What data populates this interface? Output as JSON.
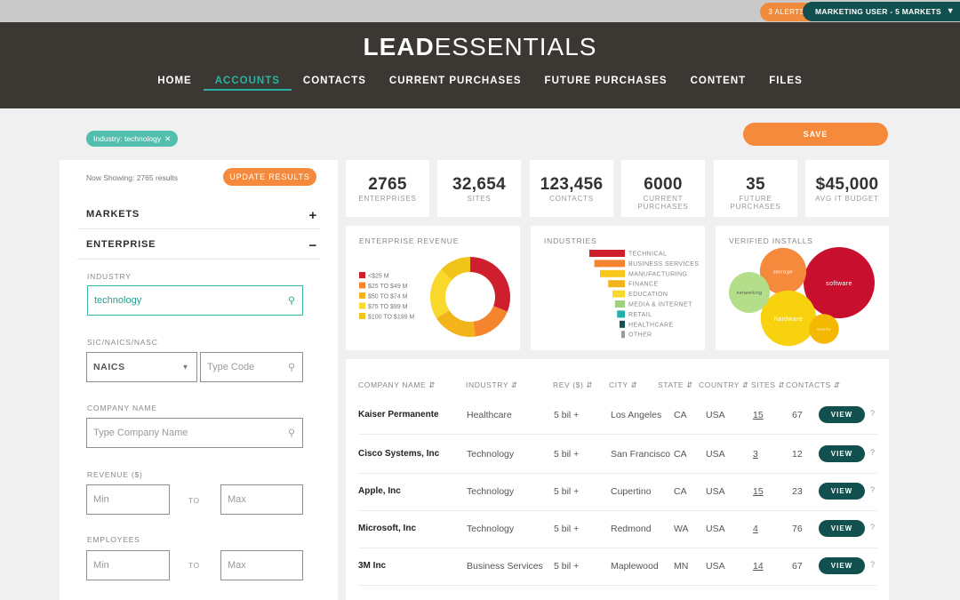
{
  "topbar": {
    "alerts": "3 ALERTS",
    "user": "MARKETING USER - 5 MARKETS"
  },
  "brand": {
    "bold": "LEAD",
    "light": "ESSENTIALS"
  },
  "nav": [
    "HOME",
    "ACCOUNTS",
    "CONTACTS",
    "CURRENT PURCHASES",
    "FUTURE PURCHASES",
    "CONTENT",
    "FILES"
  ],
  "filter_chip": "Industry: technology",
  "save_label": "SAVE",
  "left": {
    "now_showing": "Now Showing: 2765 results",
    "update_label": "UPDATE RESULTS",
    "markets_label": "MARKETS",
    "enterprise_label": "ENTERPRISE",
    "industry_label": "INDUSTRY",
    "industry_value": "technology",
    "sic_label": "SIC/NAICS/NASC",
    "sic_select": "NAICS",
    "type_code_placeholder": "Type Code",
    "company_label": "COMPANY NAME",
    "company_placeholder": "Type Company Name",
    "revenue_label": "REVENUE ($)",
    "employees_label": "EMPLOYEES",
    "min_placeholder": "Min",
    "max_placeholder": "Max",
    "to_label": "TO"
  },
  "stats": [
    {
      "num": "2765",
      "lbl1": "ENTERPRISES",
      "lbl2": ""
    },
    {
      "num": "32,654",
      "lbl1": "SITES",
      "lbl2": ""
    },
    {
      "num": "123,456",
      "lbl1": "CONTACTS",
      "lbl2": ""
    },
    {
      "num": "6000",
      "lbl1": "CURRENT",
      "lbl2": "PURCHASES"
    },
    {
      "num": "35",
      "lbl1": "FUTURE",
      "lbl2": "PURCHASES"
    },
    {
      "num": "$45,000",
      "lbl1": "AVG IT BUDGET",
      "lbl2": ""
    }
  ],
  "charts": {
    "revenue_title": "ENTERPRISE REVENUE",
    "industries_title": "INDUSTRIES",
    "installs_title": "VERIFIED INSTALLS"
  },
  "chart_data": [
    {
      "type": "pie",
      "title": "ENTERPRISE REVENUE",
      "categories": [
        "<$25 M",
        "$25 TO $49 M",
        "$50 TO $74 M",
        "$75 TO $99 M",
        "$100 TO $199 M"
      ],
      "values": [
        31,
        17,
        18,
        21,
        13
      ],
      "colors": [
        "#cf1f2e",
        "#f5842f",
        "#f2b41a",
        "#f8d82a",
        "#f0c419"
      ],
      "legend": "left"
    },
    {
      "type": "bar",
      "title": "INDUSTRIES",
      "categories": [
        "TECHNICAL",
        "BUSINESS SERVICES",
        "MANUFACTURING",
        "FINANCE",
        "EDUCATION",
        "MEDIA & INTERNET",
        "RETAIL",
        "HEALTHCARE",
        "OTHER"
      ],
      "values": [
        100,
        86,
        70,
        47,
        35,
        28,
        22,
        15,
        10
      ],
      "colors": [
        "#cf1f2e",
        "#f5842f",
        "#f8c71c",
        "#f2b41a",
        "#f8d82a",
        "#9ed180",
        "#24b0a6",
        "#12504f",
        "#9a9a9a"
      ]
    },
    {
      "type": "scatter",
      "title": "VERIFIED INSTALLS",
      "categories": [
        "software",
        "storage",
        "hardware",
        "networking",
        "security"
      ],
      "values": [
        100,
        35,
        55,
        25,
        10
      ],
      "colors": [
        "#c8102e",
        "#f58a3d",
        "#f8d20e",
        "#b5de8b",
        "#f5b800"
      ]
    }
  ],
  "table": {
    "headers": [
      "COMPANY NAME ⇵",
      "INDUSTRY ⇵",
      "REV ($) ⇵",
      "CITY ⇵",
      "STATE ⇵",
      "COUNTRY ⇵",
      "SITES ⇵",
      "CONTACTS ⇵"
    ],
    "view_label": "VIEW",
    "q": "?",
    "rows": [
      {
        "company": "Kaiser Permanente",
        "industry": "Healthcare",
        "rev": "5 bil +",
        "city": "Los Angeles",
        "state": "CA",
        "country": "USA",
        "sites": "15",
        "contacts": "67"
      },
      {
        "company": "Cisco Systems, Inc",
        "industry": "Technology",
        "rev": "5 bil +",
        "city": "San Francisco",
        "state": "CA",
        "country": "USA",
        "sites": "3",
        "contacts": "12"
      },
      {
        "company": "Apple, Inc",
        "industry": "Technology",
        "rev": "5 bil +",
        "city": "Cupertino",
        "state": "CA",
        "country": "USA",
        "sites": "15",
        "contacts": "23"
      },
      {
        "company": "Microsoft, Inc",
        "industry": "Technology",
        "rev": "5 bil +",
        "city": "Redmond",
        "state": "WA",
        "country": "USA",
        "sites": "4",
        "contacts": "76"
      },
      {
        "company": "3M Inc",
        "industry": "Business Services",
        "rev": "5 bil +",
        "city": "Maplewood",
        "state": "MN",
        "country": "USA",
        "sites": "14",
        "contacts": "67"
      }
    ]
  }
}
